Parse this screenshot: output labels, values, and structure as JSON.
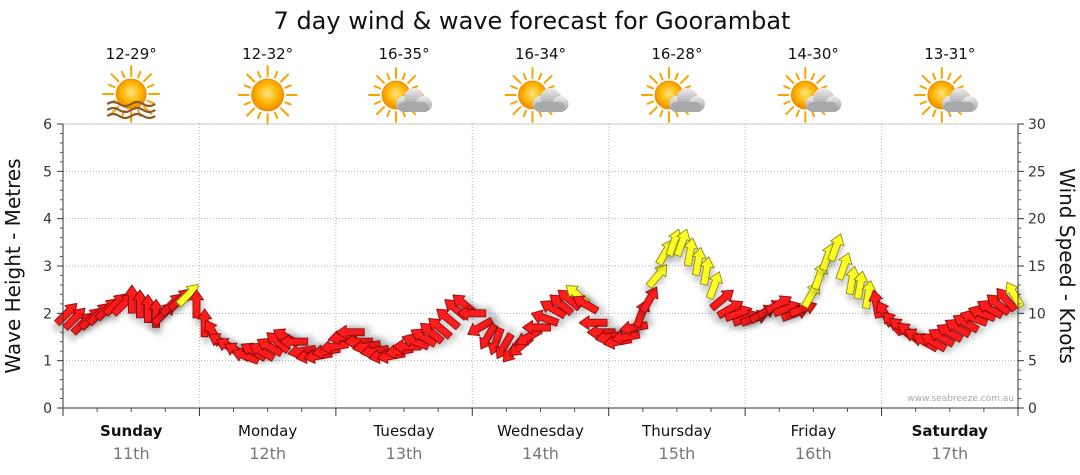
{
  "chart_data": {
    "type": "scatter",
    "title": "7 day wind & wave forecast for Goorambat",
    "ylabel_left": "Wave Height - Metres",
    "ylabel_right": "Wind Speed - Knots",
    "ylim_left": [
      0,
      6
    ],
    "ylim_right": [
      0,
      30
    ],
    "yticks_left": [
      "0",
      "1",
      "2",
      "3",
      "4",
      "5",
      "6"
    ],
    "yticks_right": [
      "0",
      "5",
      "10",
      "15",
      "20",
      "25",
      "30"
    ],
    "credit": "www.seabreeze.com.au",
    "days": [
      {
        "name": "Sunday",
        "date": "11th",
        "temp": "12-29°",
        "icon": "sun-haze-icon",
        "bold": true
      },
      {
        "name": "Monday",
        "date": "12th",
        "temp": "12-32°",
        "icon": "sun-icon",
        "bold": false
      },
      {
        "name": "Tuesday",
        "date": "13th",
        "temp": "16-35°",
        "icon": "sun-cloud-icon",
        "bold": false
      },
      {
        "name": "Wednesday",
        "date": "14th",
        "temp": "16-34°",
        "icon": "sun-cloud-icon",
        "bold": false
      },
      {
        "name": "Thursday",
        "date": "15th",
        "temp": "16-28°",
        "icon": "sun-cloud-icon",
        "bold": false
      },
      {
        "name": "Friday",
        "date": "16th",
        "temp": "14-30°",
        "icon": "sun-cloud-icon",
        "bold": false
      },
      {
        "name": "Saturday",
        "date": "17th",
        "temp": "13-31°",
        "icon": "sun-cloud-icon",
        "bold": true
      }
    ],
    "wind_knots": [
      10,
      9.5,
      9,
      9.5,
      10,
      10.5,
      11,
      11,
      11.5,
      11,
      10.5,
      10,
      10,
      11,
      11.5,
      12,
      11,
      9,
      8,
      7,
      6.5,
      6,
      5.5,
      6,
      6,
      6.5,
      7,
      7.5,
      7,
      6,
      5.5,
      5.5,
      6,
      6.5,
      7.5,
      8,
      7,
      6.5,
      6,
      5.5,
      5.5,
      6,
      6.5,
      7,
      7.5,
      8,
      8.5,
      9.5,
      10.5,
      11,
      10,
      8.5,
      7.5,
      7,
      6.5,
      6,
      6.5,
      7.5,
      8.5,
      9.5,
      10.5,
      11,
      11.5,
      12,
      11,
      9,
      8,
      7.5,
      7,
      7.5,
      8.5,
      10,
      11.5,
      14,
      16.5,
      17.5,
      17.5,
      16.5,
      15.5,
      14.5,
      13,
      11.5,
      10.5,
      10,
      9.5,
      9.5,
      10,
      10.5,
      11,
      10.5,
      10,
      10.5,
      12,
      14,
      16,
      17,
      15,
      13.5,
      13,
      12,
      11,
      10,
      9,
      8.5,
      8,
      7.5,
      7,
      7,
      7.5,
      8,
      8.5,
      9,
      9.5,
      10,
      10.5,
      11,
      11.5,
      12
    ],
    "wind_dir_deg": [
      225,
      225,
      225,
      225,
      225,
      225,
      225,
      225,
      180,
      180,
      180,
      180,
      225,
      225,
      225,
      225,
      180,
      180,
      150,
      120,
      120,
      120,
      110,
      120,
      120,
      120,
      130,
      120,
      90,
      80,
      80,
      80,
      80,
      80,
      80,
      90,
      90,
      80,
      80,
      80,
      80,
      80,
      90,
      110,
      120,
      130,
      130,
      130,
      130,
      130,
      90,
      60,
      30,
      20,
      30,
      40,
      50,
      60,
      90,
      110,
      120,
      130,
      130,
      130,
      120,
      90,
      90,
      80,
      80,
      80,
      80,
      200,
      210,
      220,
      210,
      200,
      200,
      190,
      190,
      190,
      200,
      230,
      240,
      250,
      250,
      250,
      240,
      240,
      240,
      250,
      250,
      250,
      210,
      200,
      200,
      200,
      200,
      190,
      190,
      190,
      170,
      150,
      140,
      130,
      130,
      120,
      120,
      120,
      120,
      120,
      120,
      120,
      110,
      110,
      120,
      130,
      140,
      150
    ]
  }
}
